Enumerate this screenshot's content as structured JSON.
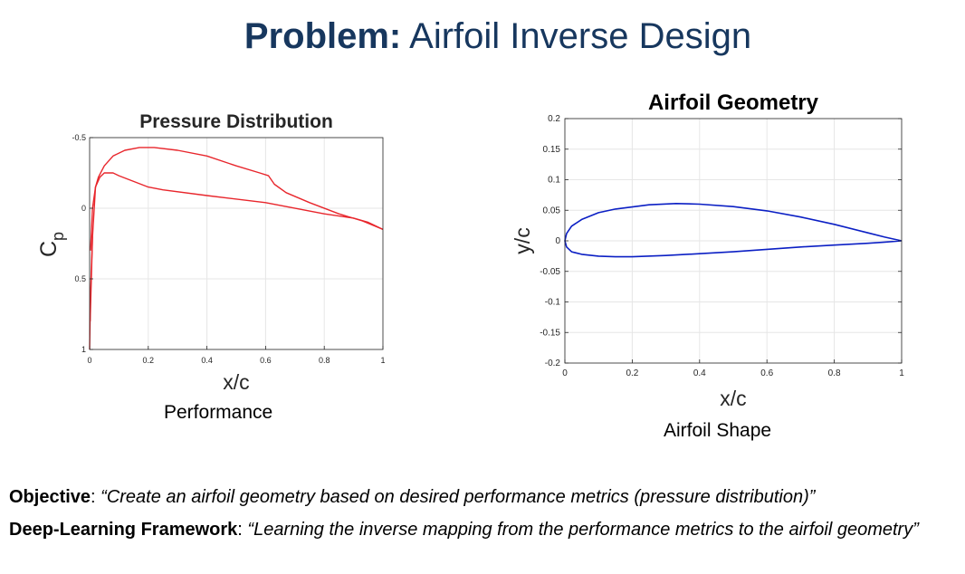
{
  "slide": {
    "title_bold": "Problem:",
    "title_rest": " Airfoil Inverse Design",
    "caption_left": "Performance",
    "caption_right": "Airfoil Shape",
    "objective_label": "Objective",
    "objective_text": "“Create an airfoil geometry based on desired performance metrics (pressure distribution)”",
    "framework_label": "Deep-Learning Framework",
    "framework_text": "“Learning the inverse mapping from the performance metrics to the airfoil geometry”"
  },
  "chart_data": [
    {
      "type": "line",
      "title": "Pressure Distribution",
      "xlabel": "x/c",
      "ylabel": "C",
      "ylabel_subscript": "p",
      "xlim": [
        0,
        1
      ],
      "ylim": [
        -0.5,
        1
      ],
      "y_reversed": true,
      "grid": true,
      "line_color": "#e8262c",
      "xticks": [
        0,
        0.2,
        0.4,
        0.6,
        0.8,
        1
      ],
      "xtick_labels": [
        "0",
        "0.2",
        "0.4",
        "0.6",
        "0.8",
        "1"
      ],
      "yticks": [
        -0.5,
        0,
        0.5,
        1
      ],
      "ytick_labels": [
        "-0.5",
        "0",
        "0.5",
        "1"
      ],
      "series": [
        {
          "x": [
            0.003,
            0.01,
            0.02,
            0.03,
            0.05,
            0.08,
            0.12,
            0.17,
            0.22,
            0.3,
            0.4,
            0.5,
            0.58,
            0.61,
            0.63,
            0.67,
            0.75,
            0.85,
            0.93,
            1.0
          ],
          "y": [
            0.3,
            0.0,
            -0.15,
            -0.22,
            -0.3,
            -0.37,
            -0.41,
            -0.43,
            -0.43,
            -0.41,
            -0.37,
            -0.3,
            -0.25,
            -0.23,
            -0.17,
            -0.11,
            -0.04,
            0.04,
            0.09,
            0.15
          ]
        },
        {
          "x": [
            0.002,
            0.01,
            0.02,
            0.035,
            0.05,
            0.08,
            0.1,
            0.15,
            0.2,
            0.25,
            0.4,
            0.6,
            0.8,
            0.9,
            0.95,
            1.0
          ],
          "y": [
            0.8,
            0.2,
            -0.15,
            -0.22,
            -0.25,
            -0.25,
            -0.23,
            -0.19,
            -0.15,
            -0.13,
            -0.09,
            -0.04,
            0.04,
            0.07,
            0.1,
            0.15
          ]
        },
        {
          "x": [
            0.0,
            0.003,
            0.01
          ],
          "y": [
            1.0,
            0.6,
            0.2
          ]
        }
      ]
    },
    {
      "type": "line",
      "title": "Airfoil Geometry",
      "xlabel": "x/c",
      "ylabel": "y/c",
      "xlim": [
        0,
        1
      ],
      "ylim": [
        -0.2,
        0.2
      ],
      "grid": true,
      "line_color": "#0b1fc4",
      "xticks": [
        0,
        0.2,
        0.4,
        0.6,
        0.8,
        1
      ],
      "xtick_labels": [
        "0",
        "0.2",
        "0.4",
        "0.6",
        "0.8",
        "1"
      ],
      "yticks": [
        0.2,
        0.15,
        0.1,
        0.05,
        0,
        -0.05,
        -0.1,
        -0.15,
        -0.2
      ],
      "ytick_labels": [
        "0.2",
        "0.15",
        "0.1",
        "0.05",
        "0",
        "-0.05",
        "-0.1",
        "-0.15",
        "-0.2"
      ],
      "series": [
        {
          "name": "",
          "x": [
            1.0,
            0.95,
            0.9,
            0.8,
            0.7,
            0.6,
            0.5,
            0.4,
            0.33,
            0.25,
            0.15,
            0.1,
            0.05,
            0.02,
            0.005,
            0.0,
            0.005,
            0.02,
            0.05,
            0.1,
            0.15,
            0.2,
            0.3,
            0.4,
            0.5,
            0.6,
            0.7,
            0.8,
            0.9,
            0.95,
            1.0
          ],
          "y": [
            0.0,
            0.006,
            0.013,
            0.027,
            0.039,
            0.049,
            0.056,
            0.06,
            0.061,
            0.059,
            0.052,
            0.046,
            0.035,
            0.024,
            0.012,
            0.0,
            -0.01,
            -0.018,
            -0.022,
            -0.025,
            -0.026,
            -0.026,
            -0.024,
            -0.021,
            -0.018,
            -0.014,
            -0.01,
            -0.007,
            -0.004,
            -0.002,
            0.0
          ]
        }
      ]
    }
  ]
}
